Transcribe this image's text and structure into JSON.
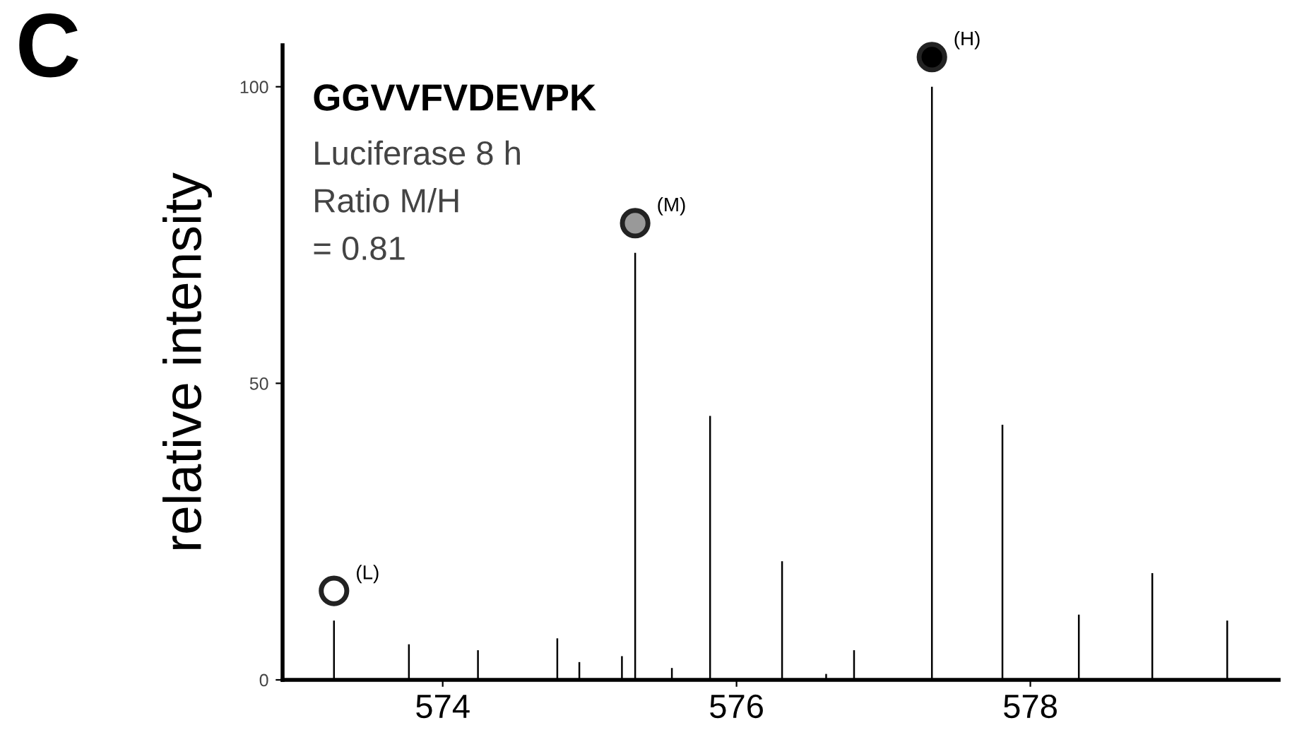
{
  "chart_data": {
    "type": "bar",
    "title": "GGVVFVDEVPK",
    "ylabel": "relative intensity",
    "annotations": [
      "C",
      "Luciferase 8 h",
      "Ratio M/H",
      "= 0.81",
      {
        "text": "(L)",
        "x": 573.26,
        "y": 15
      },
      {
        "text": "(M)",
        "x": 575.31,
        "y": 77
      },
      {
        "text": "(H)",
        "x": 577.33,
        "y": 105
      }
    ],
    "series": [
      {
        "color": "#000000",
        "x": [
          573.26,
          573.77,
          574.24,
          574.78,
          574.93,
          575.22,
          575.31,
          575.56,
          575.82,
          576.31,
          576.61,
          576.8,
          577.33,
          577.81,
          578.33,
          578.83,
          579.34
        ],
        "values": [
          10,
          6,
          5,
          7,
          3,
          4,
          72,
          2,
          44.5,
          20,
          1,
          5,
          100,
          43,
          11,
          18,
          10
        ]
      },
      {
        "type": "scatter",
        "marker": "circle",
        "colors": [
          "#ffffff",
          "#999999",
          "#000000"
        ],
        "x": [
          573.26,
          575.31,
          577.33
        ],
        "values": [
          15,
          77,
          105
        ]
      }
    ],
    "xlim": [
      572.91,
      579.69
    ],
    "xticks": [
      574,
      576,
      578
    ],
    "ylim": [
      0,
      107
    ],
    "yticks": [
      0,
      50,
      100
    ],
    "grid": false,
    "legend": false
  }
}
